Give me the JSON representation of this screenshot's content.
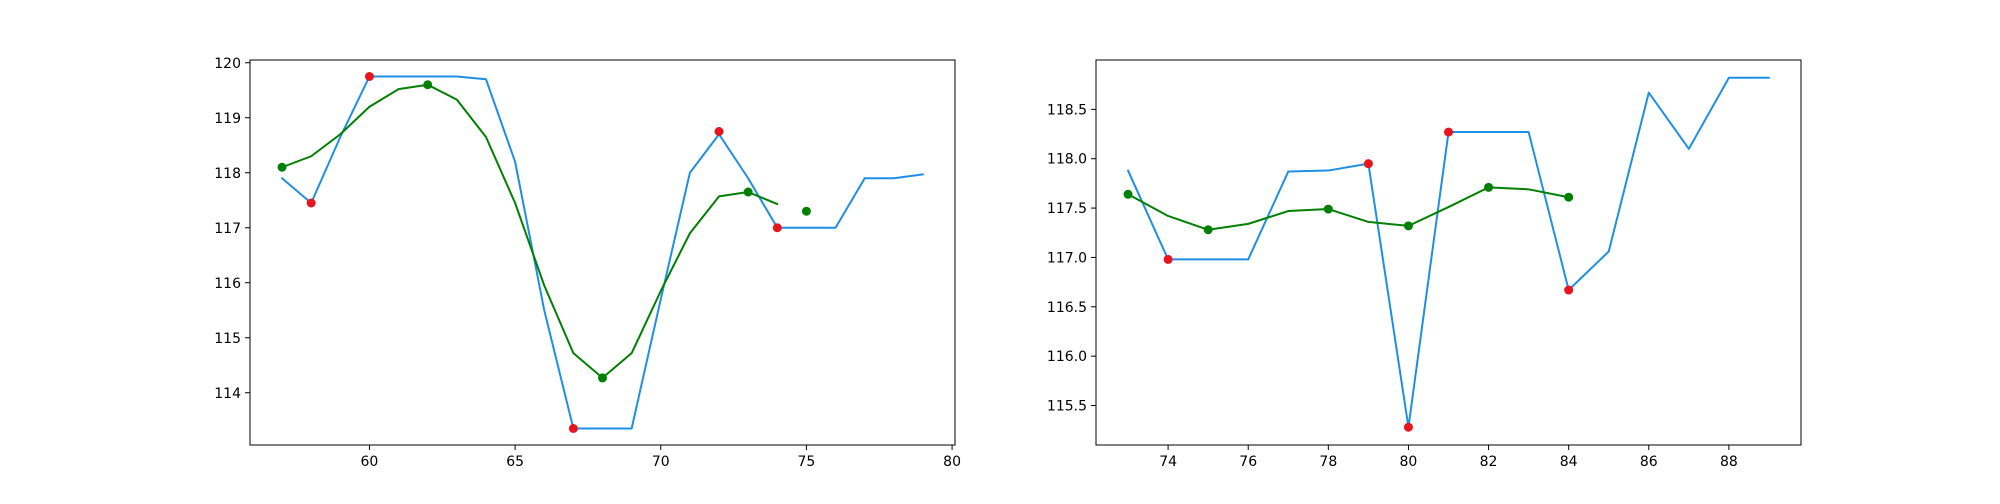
{
  "chart_data": [
    {
      "type": "line",
      "xlim": [
        55.9,
        80.1
      ],
      "ylim": [
        113.05,
        120.05
      ],
      "xticks": [
        60,
        65,
        70,
        75,
        80
      ],
      "yticks": [
        114,
        115,
        116,
        117,
        118,
        119,
        120
      ],
      "grid": false,
      "series": [
        {
          "color": "#1f8fe6",
          "x": [
            57,
            58,
            59,
            60,
            61,
            62,
            63,
            64,
            65,
            66,
            67,
            68,
            69,
            70,
            71,
            72,
            73,
            74,
            75,
            76,
            77,
            78,
            79
          ],
          "y": [
            117.9,
            117.45,
            118.65,
            119.75,
            119.75,
            119.75,
            119.75,
            119.7,
            118.2,
            115.5,
            113.35,
            113.35,
            113.35,
            115.7,
            118.0,
            118.7,
            117.9,
            117.0,
            117.0,
            117.0,
            117.9,
            117.9,
            117.97
          ]
        },
        {
          "color": "#008000",
          "x": [
            57,
            58,
            59,
            60,
            61,
            62,
            63,
            64,
            65,
            66,
            67,
            68,
            69,
            70,
            71,
            72,
            73,
            74
          ],
          "y": [
            118.1,
            118.3,
            118.7,
            119.2,
            119.52,
            119.6,
            119.33,
            118.65,
            117.45,
            115.95,
            114.72,
            114.27,
            114.72,
            115.85,
            116.9,
            117.57,
            117.65,
            117.43
          ]
        }
      ],
      "markers": [
        {
          "color": "#e8141e",
          "x": [
            58,
            60,
            67,
            72,
            74
          ],
          "y": [
            117.45,
            119.75,
            113.35,
            118.75,
            117.0
          ]
        },
        {
          "color": "#008000",
          "x": [
            57,
            62,
            68,
            73,
            75
          ],
          "y": [
            118.1,
            119.6,
            114.27,
            117.65,
            117.3
          ]
        }
      ]
    },
    {
      "type": "line",
      "xlim": [
        72.2,
        89.8
      ],
      "ylim": [
        115.1,
        119.0
      ],
      "xticks": [
        74,
        76,
        78,
        80,
        82,
        84,
        86,
        88
      ],
      "yticks": [
        115.5,
        116.0,
        116.5,
        117.0,
        117.5,
        118.0,
        118.5
      ],
      "grid": false,
      "series": [
        {
          "color": "#1f8fe6",
          "x": [
            73,
            74,
            75,
            76,
            77,
            78,
            79,
            80,
            81,
            82,
            83,
            84,
            85,
            86,
            87,
            88,
            89
          ],
          "y": [
            117.88,
            116.98,
            116.98,
            116.98,
            117.87,
            117.88,
            117.95,
            115.28,
            118.27,
            118.27,
            118.27,
            116.67,
            117.06,
            118.67,
            118.1,
            118.82,
            118.82
          ]
        },
        {
          "color": "#008000",
          "x": [
            73,
            74,
            75,
            76,
            77,
            78,
            79,
            80,
            81,
            82,
            83,
            84
          ],
          "y": [
            117.64,
            117.42,
            117.28,
            117.34,
            117.47,
            117.49,
            117.36,
            117.32,
            117.51,
            117.71,
            117.69,
            117.61
          ]
        }
      ],
      "markers": [
        {
          "color": "#e8141e",
          "x": [
            74,
            79,
            80,
            81,
            84
          ],
          "y": [
            116.98,
            117.95,
            115.28,
            118.27,
            116.67
          ]
        },
        {
          "color": "#008000",
          "x": [
            73,
            75,
            78,
            80,
            82,
            84
          ],
          "y": [
            117.64,
            117.28,
            117.49,
            117.32,
            117.71,
            117.61
          ]
        }
      ]
    }
  ]
}
